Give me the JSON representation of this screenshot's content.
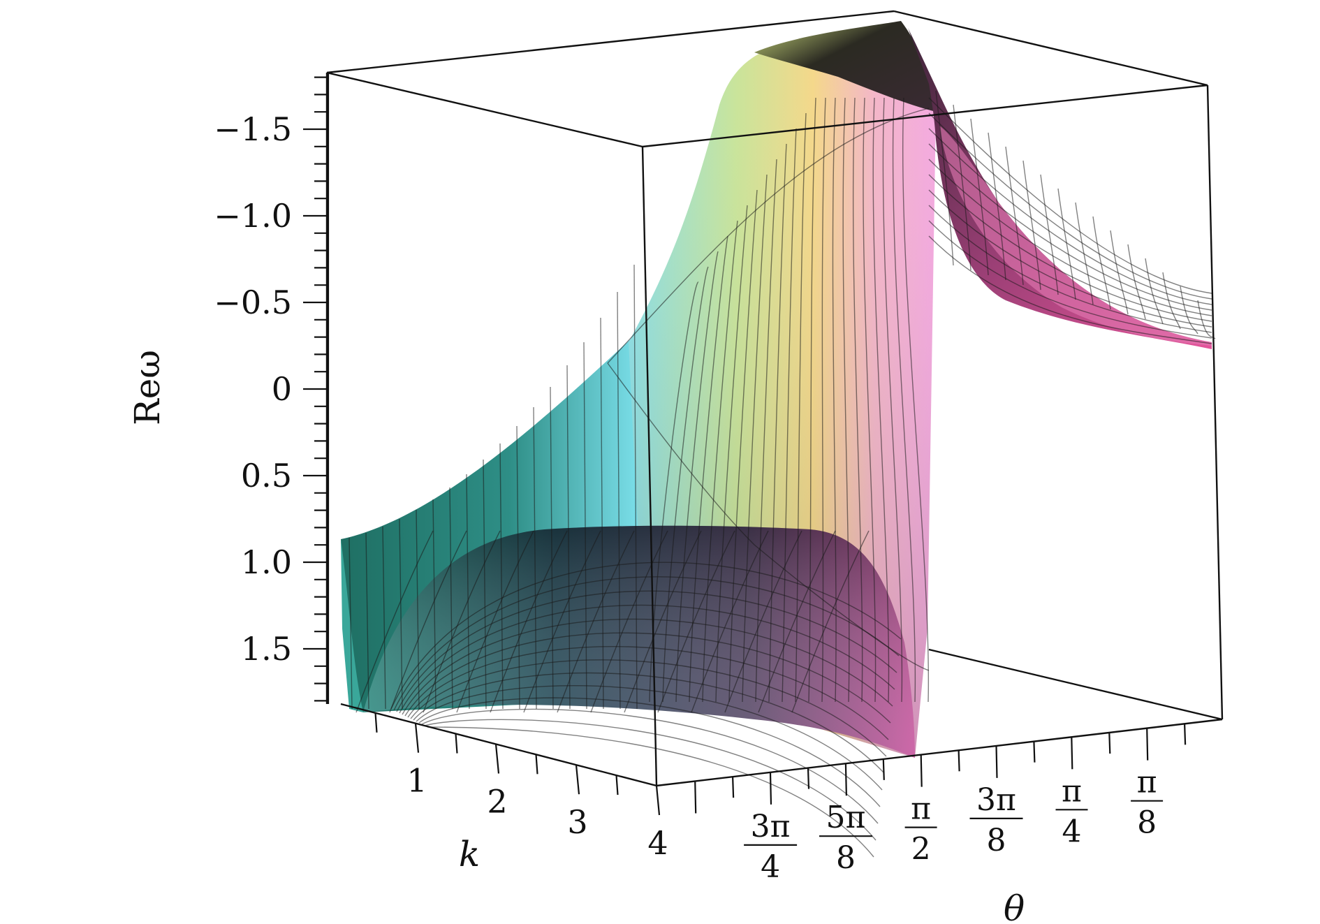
{
  "chart_data": {
    "type": "surface3d",
    "title": "",
    "zlabel": "Reω",
    "xlabel": "k",
    "ylabel": "θ",
    "z_ticks": [
      "−1.5",
      "−1.0",
      "−0.5",
      "0",
      "0.5",
      "1.0",
      "1.5"
    ],
    "z_tick_values": [
      -1.5,
      -1.0,
      -0.5,
      0,
      0.5,
      1.0,
      1.5
    ],
    "z_axis_reversed": true,
    "k_ticks": [
      "1",
      "2",
      "3",
      "4"
    ],
    "k_tick_values": [
      1,
      2,
      3,
      4
    ],
    "theta_ticks": [
      {
        "num": "3π",
        "den": "4"
      },
      {
        "num": "5π",
        "den": "8"
      },
      {
        "num": "π",
        "den": "2"
      },
      {
        "num": "3π",
        "den": "8"
      },
      {
        "num": "π",
        "den": "4"
      },
      {
        "num": "π",
        "den": "8"
      }
    ],
    "theta_tick_values": [
      2.356,
      1.963,
      1.571,
      1.178,
      0.785,
      0.393
    ],
    "colormap": [
      "#1f6f63",
      "#7fe3ef",
      "#f4e58a",
      "#f2a6d8",
      "#d9458f"
    ],
    "grid": false,
    "legend": "none"
  }
}
